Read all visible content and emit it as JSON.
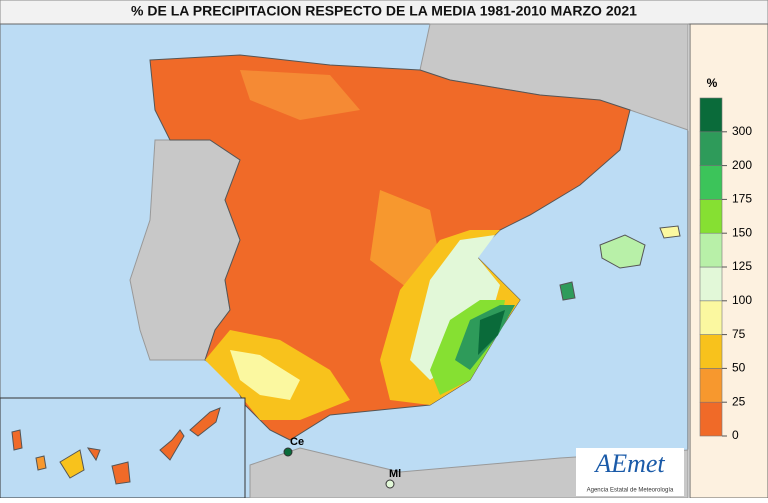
{
  "title": "% DE LA PRECIPITACION RESPECTO DE LA MEDIA 1981-2010 MARZO 2021",
  "legend": {
    "unit": "%",
    "colors": [
      "#f06a28",
      "#f7982e",
      "#f8c21c",
      "#fbf8a0",
      "#e2f8d8",
      "#b8f0a8",
      "#86e032",
      "#3cc45a",
      "#2e9b5a",
      "#0a6b3a"
    ],
    "ticks": [
      0,
      25,
      50,
      75,
      100,
      125,
      150,
      175,
      200,
      300
    ]
  },
  "places": {
    "ceuta": "Ce",
    "melilla": "Ml"
  },
  "logo": {
    "name": "AEmet",
    "subtitle": "Agencia Estatal de Meteorología"
  }
}
